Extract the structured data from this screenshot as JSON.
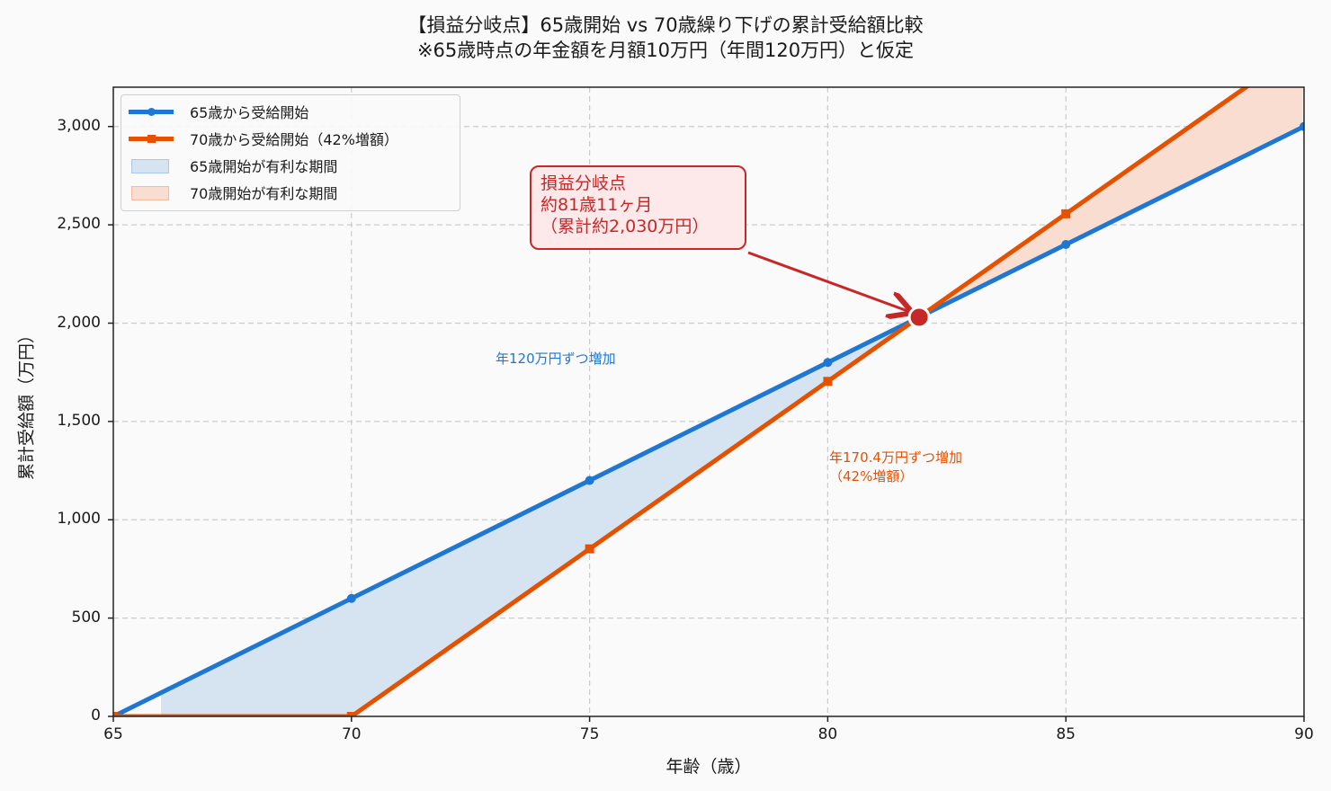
{
  "title": {
    "line1": "【損益分岐点】65歳開始 vs 70歳繰り下げの累計受給額比較",
    "line2": "※65歳時点の年金額を月額10万円（年間120万円）と仮定"
  },
  "axes": {
    "xlabel": "年齢（歳）",
    "ylabel": "累計受給額（万円）",
    "xticks": [
      "65",
      "70",
      "75",
      "80",
      "85",
      "90"
    ],
    "yticks": [
      "0",
      "500",
      "1,000",
      "1,500",
      "2,000",
      "2,500",
      "3,000"
    ]
  },
  "legend": {
    "items": [
      {
        "label": "65歳から受給開始",
        "type": "line",
        "color": "#1f77d4"
      },
      {
        "label": "70歳から受給開始（42%増額）",
        "type": "line",
        "color": "#e65100"
      },
      {
        "label": "65歳開始が有利な期間",
        "type": "fill",
        "color": "#d6e4f2"
      },
      {
        "label": "70歳開始が有利な期間",
        "type": "fill",
        "color": "#f8ddd0"
      }
    ]
  },
  "annotations": {
    "breakeven": {
      "line1": "損益分岐点",
      "line2": "約81歳11ヶ月",
      "line3": "（累計約2,030万円）"
    },
    "note_65": "年120万円ずつ増加",
    "note_70_line1": "年170.4万円ずつ増加",
    "note_70_line2": "（42%増額）"
  },
  "colors": {
    "blue": "#1f77d4",
    "orange": "#e65100",
    "blue_fill": "#d6e4f2",
    "orange_fill": "#f8ddd0",
    "breakeven": "#c62828"
  },
  "chart_data": {
    "type": "line",
    "title": "【損益分岐点】65歳開始 vs 70歳繰り下げの累計受給額比較 ※65歳時点の年金額を月額10万円（年間120万円）と仮定",
    "xlabel": "年齢（歳）",
    "ylabel": "累計受給額（万円）",
    "xlim": [
      65,
      90
    ],
    "ylim": [
      0,
      3200
    ],
    "grid": true,
    "legend_position": "upper left",
    "x": [
      65,
      70,
      75,
      80,
      85,
      90
    ],
    "series": [
      {
        "name": "65歳から受給開始",
        "values": [
          0,
          600,
          1200,
          1800,
          2400,
          3000
        ],
        "marker": "circle",
        "color": "#1f77d4"
      },
      {
        "name": "70歳から受給開始（42%増額）",
        "values": [
          0,
          0,
          852,
          1704,
          2556,
          3408
        ],
        "marker": "square",
        "color": "#e65100"
      }
    ],
    "fills": [
      {
        "name": "65歳開始が有利な期間",
        "x_range": [
          66,
          81.92
        ],
        "color": "#d6e4f2"
      },
      {
        "name": "70歳開始が有利な期間",
        "x_range": [
          81.92,
          90
        ],
        "color": "#f8ddd0"
      }
    ],
    "breakeven_point": {
      "x": 81.92,
      "y": 2030,
      "label": "損益分岐点 約81歳11ヶ月（累計約2,030万円）"
    },
    "annotations": [
      "年120万円ずつ増加",
      "年170.4万円ずつ増加（42%増額）"
    ]
  }
}
